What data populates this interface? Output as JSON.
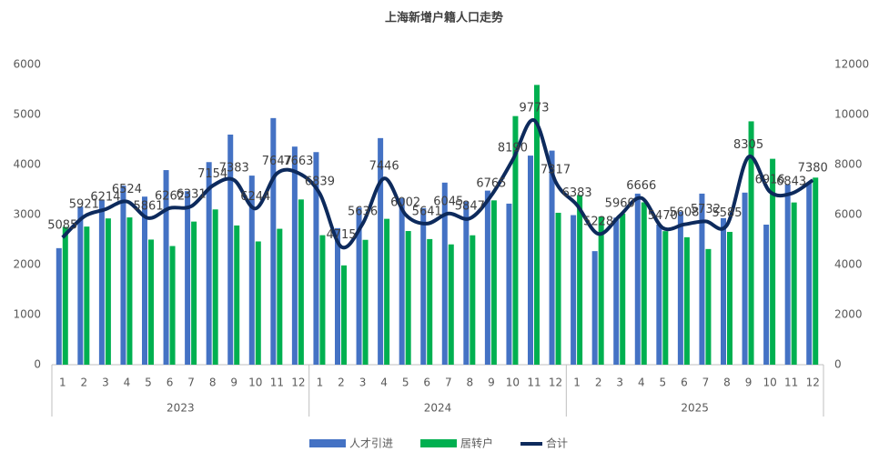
{
  "chart_data": {
    "type": "bar",
    "title": "上海新增户籍人口走势",
    "categories": [
      "1",
      "2",
      "3",
      "4",
      "5",
      "6",
      "7",
      "8",
      "9",
      "10",
      "11",
      "12",
      "1",
      "2",
      "3",
      "4",
      "5",
      "6",
      "7",
      "8",
      "9",
      "10",
      "11",
      "12",
      "1",
      "2",
      "3",
      "4",
      "5",
      "6",
      "7",
      "8",
      "9",
      "10",
      "11",
      "12"
    ],
    "x_groups": [
      "2023",
      "2024",
      "2025"
    ],
    "series": [
      {
        "name": "人才引进",
        "type": "bar",
        "color": "#4472c4",
        "axis": "y",
        "values": [
          2330,
          3160,
          3290,
          3580,
          3360,
          3890,
          3470,
          4050,
          4600,
          3780,
          4930,
          4360,
          4250,
          2730,
          3140,
          4530,
          3330,
          3130,
          3640,
          3260,
          3480,
          3220,
          4180,
          4280,
          2990,
          2270,
          2940,
          3420,
          2800,
          3060,
          3420,
          2930,
          3440,
          2800,
          3600,
          3640
        ]
      },
      {
        "name": "居转户",
        "type": "bar",
        "color": "#00b050",
        "axis": "y",
        "values": [
          2755,
          2761,
          2924,
          2944,
          2501,
          2372,
          2861,
          3104,
          2783,
          2464,
          2717,
          3303,
          2589,
          1985,
          2496,
          2916,
          2672,
          2511,
          2405,
          2587,
          3285,
          4970,
          5593,
          3037,
          3393,
          2958,
          3020,
          3246,
          2670,
          2548,
          2312,
          2655,
          4865,
          4116,
          3243,
          3740
        ]
      },
      {
        "name": "合计",
        "type": "line",
        "color": "#0d2a5c",
        "axis": "y2",
        "values": [
          5085,
          5921,
          6214,
          6524,
          5861,
          6262,
          6331,
          7154,
          7383,
          6244,
          7647,
          7663,
          6839,
          4715,
          5636,
          7446,
          6002,
          5641,
          6045,
          5847,
          6765,
          8190,
          9773,
          7317,
          6383,
          5228,
          5960,
          6666,
          5470,
          5608,
          5732,
          5585,
          8305,
          6916,
          6843,
          7380
        ]
      }
    ],
    "ylim": [
      0,
      6000
    ],
    "yticks": [
      0,
      1000,
      2000,
      3000,
      4000,
      5000,
      6000
    ],
    "y2lim": [
      0,
      12000
    ],
    "y2ticks": [
      0,
      2000,
      4000,
      6000,
      8000,
      10000,
      12000
    ],
    "grid": false,
    "legend": "bottom"
  }
}
